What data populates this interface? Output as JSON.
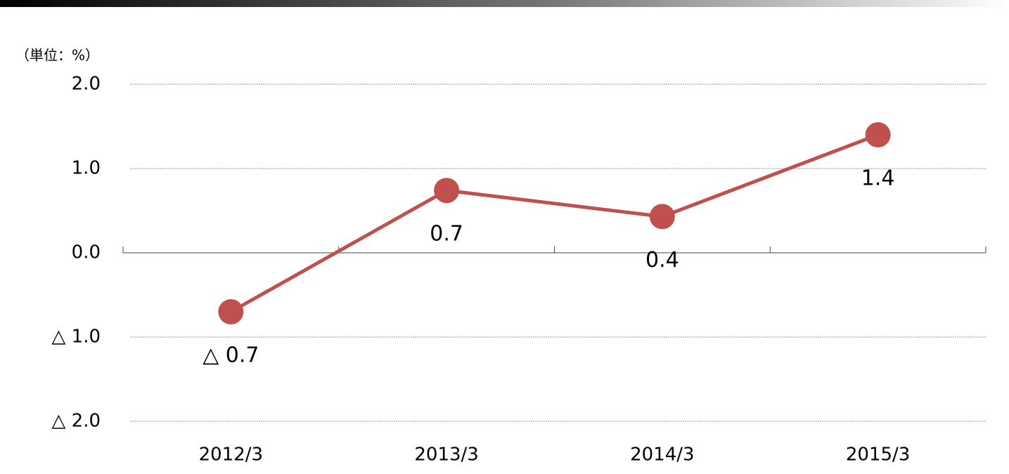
{
  "chart_data": {
    "type": "line",
    "unit_label": "（単位：%）",
    "categories": [
      "2012/3",
      "2013/3",
      "2014/3",
      "2015/3"
    ],
    "series": [
      {
        "color": "#c0504d",
        "values": [
          -0.7,
          0.74,
          0.43,
          1.4
        ],
        "value_labels": [
          "△ 0.7",
          "0.7",
          "0.4",
          "1.4"
        ]
      }
    ],
    "ylim": [
      -2,
      2
    ],
    "yticks": [
      {
        "value": -2,
        "label": "△ 2.0"
      },
      {
        "value": -1,
        "label": "△ 1.0"
      },
      {
        "value": 0,
        "label": "0.0"
      },
      {
        "value": 1,
        "label": "1.0"
      },
      {
        "value": 2,
        "label": "2.0"
      }
    ],
    "grid": true
  }
}
